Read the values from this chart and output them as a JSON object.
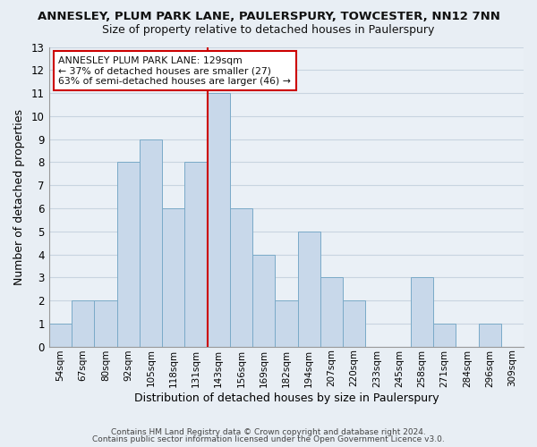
{
  "title_line1": "ANNESLEY, PLUM PARK LANE, PAULERSPURY, TOWCESTER, NN12 7NN",
  "title_line2": "Size of property relative to detached houses in Paulerspury",
  "xlabel": "Distribution of detached houses by size in Paulerspury",
  "ylabel": "Number of detached properties",
  "bin_labels": [
    "54sqm",
    "67sqm",
    "80sqm",
    "92sqm",
    "105sqm",
    "118sqm",
    "131sqm",
    "143sqm",
    "156sqm",
    "169sqm",
    "182sqm",
    "194sqm",
    "207sqm",
    "220sqm",
    "233sqm",
    "245sqm",
    "258sqm",
    "271sqm",
    "284sqm",
    "296sqm",
    "309sqm"
  ],
  "bar_values": [
    1,
    2,
    2,
    8,
    9,
    6,
    8,
    11,
    6,
    4,
    2,
    5,
    3,
    2,
    0,
    0,
    3,
    1,
    0,
    1,
    0
  ],
  "bar_color": "#c8d8ea",
  "bar_edge_color": "#7aaac8",
  "vline_x_index": 6,
  "vline_color": "#cc0000",
  "ylim": [
    0,
    13
  ],
  "yticks": [
    0,
    1,
    2,
    3,
    4,
    5,
    6,
    7,
    8,
    9,
    10,
    11,
    12,
    13
  ],
  "annotation_title": "ANNESLEY PLUM PARK LANE: 129sqm",
  "annotation_line2": "← 37% of detached houses are smaller (27)",
  "annotation_line3": "63% of semi-detached houses are larger (46) →",
  "footer_line1": "Contains HM Land Registry data © Crown copyright and database right 2024.",
  "footer_line2": "Contains public sector information licensed under the Open Government Licence v3.0.",
  "background_color": "#e8eef4",
  "plot_bg_color": "#eaf0f6",
  "grid_color": "#c8d4e0"
}
